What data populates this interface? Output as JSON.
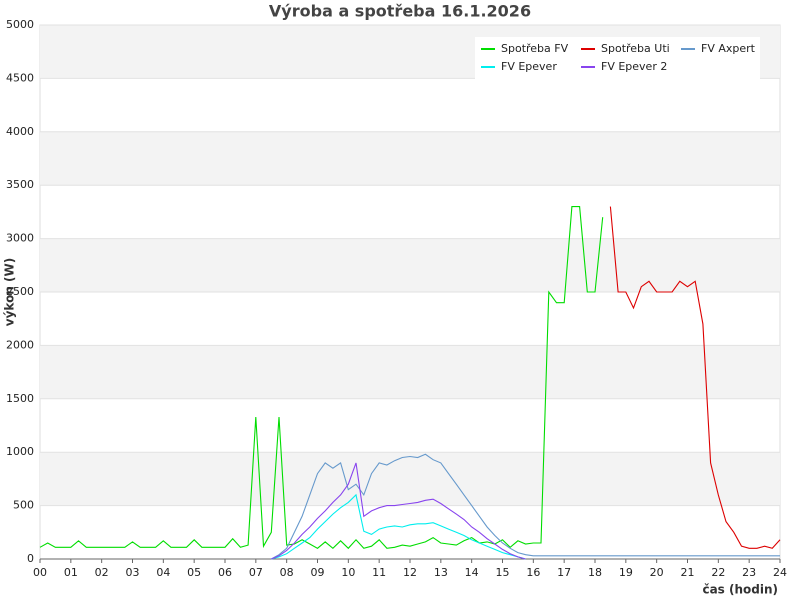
{
  "chart_data": {
    "type": "line",
    "title": "Výroba a spotřeba 16.1.2026",
    "x_label": "čas (hodin)",
    "y_label": "výkon (W)",
    "xlim": [
      0,
      24
    ],
    "ylim": [
      0,
      5000
    ],
    "xticks": [
      {
        "value": 0,
        "label": "00"
      },
      {
        "value": 1,
        "label": "01"
      },
      {
        "value": 2,
        "label": "02"
      },
      {
        "value": 3,
        "label": "03"
      },
      {
        "value": 4,
        "label": "04"
      },
      {
        "value": 5,
        "label": "05"
      },
      {
        "value": 6,
        "label": "06"
      },
      {
        "value": 7,
        "label": "07"
      },
      {
        "value": 8,
        "label": "08"
      },
      {
        "value": 9,
        "label": "09"
      },
      {
        "value": 10,
        "label": "10"
      },
      {
        "value": 11,
        "label": "11"
      },
      {
        "value": 12,
        "label": "12"
      },
      {
        "value": 13,
        "label": "13"
      },
      {
        "value": 14,
        "label": "14"
      },
      {
        "value": 15,
        "label": "15"
      },
      {
        "value": 16,
        "label": "16"
      },
      {
        "value": 17,
        "label": "17"
      },
      {
        "value": 18,
        "label": "18"
      },
      {
        "value": 19,
        "label": "19"
      },
      {
        "value": 20,
        "label": "20"
      },
      {
        "value": 21,
        "label": "21"
      },
      {
        "value": 22,
        "label": "22"
      },
      {
        "value": 23,
        "label": "23"
      },
      {
        "value": 24,
        "label": "24"
      }
    ],
    "yticks": [
      0,
      500,
      1000,
      1500,
      2000,
      2500,
      3000,
      3500,
      4000,
      4500,
      5000
    ],
    "grid": "bands",
    "legend": "upper right",
    "x": [
      0,
      0.25,
      0.5,
      0.75,
      1,
      1.25,
      1.5,
      1.75,
      2,
      2.25,
      2.5,
      2.75,
      3,
      3.25,
      3.5,
      3.75,
      4,
      4.25,
      4.5,
      4.75,
      5,
      5.25,
      5.5,
      5.75,
      6,
      6.25,
      6.5,
      6.75,
      7,
      7.25,
      7.5,
      7.75,
      8,
      8.25,
      8.5,
      8.75,
      9,
      9.25,
      9.5,
      9.75,
      10,
      10.25,
      10.5,
      10.75,
      11,
      11.25,
      11.5,
      11.75,
      12,
      12.25,
      12.5,
      12.75,
      13,
      13.25,
      13.5,
      13.75,
      14,
      14.25,
      14.5,
      14.75,
      15,
      15.25,
      15.5,
      15.75,
      16,
      16.25,
      16.5,
      16.75,
      17,
      17.25,
      17.5,
      17.75,
      18,
      18.25,
      18.5,
      18.75,
      19,
      19.25,
      19.5,
      19.75,
      20,
      20.25,
      20.5,
      20.75,
      21,
      21.25,
      21.5,
      21.75,
      22,
      22.25,
      22.5,
      22.75,
      23,
      23.25,
      23.5,
      23.75,
      24
    ],
    "series": [
      {
        "name": "Spotřeba FV",
        "color": "#00dd00",
        "values": [
          110,
          150,
          110,
          110,
          110,
          170,
          110,
          110,
          110,
          110,
          110,
          110,
          160,
          110,
          110,
          110,
          170,
          110,
          110,
          110,
          180,
          110,
          110,
          110,
          110,
          190,
          110,
          130,
          1330,
          120,
          250,
          1330,
          130,
          140,
          180,
          140,
          100,
          160,
          100,
          170,
          100,
          180,
          100,
          120,
          180,
          100,
          110,
          130,
          120,
          140,
          160,
          200,
          150,
          140,
          130,
          170,
          200,
          150,
          160,
          140,
          180,
          110,
          170,
          140,
          150,
          150,
          2500,
          2400,
          2400,
          3300,
          3300,
          2500,
          2500,
          3200,
          null,
          null,
          null,
          null,
          null,
          null,
          null,
          null,
          null,
          null,
          null,
          null,
          null,
          null,
          null,
          null,
          null,
          null,
          null,
          null,
          null,
          null,
          null
        ]
      },
      {
        "name": "Spotřeba Uti",
        "color": "#dd0000",
        "values": [
          null,
          null,
          null,
          null,
          null,
          null,
          null,
          null,
          null,
          null,
          null,
          null,
          null,
          null,
          null,
          null,
          null,
          null,
          null,
          null,
          null,
          null,
          null,
          null,
          null,
          null,
          null,
          null,
          null,
          null,
          null,
          null,
          null,
          null,
          null,
          null,
          null,
          null,
          null,
          null,
          null,
          null,
          null,
          null,
          null,
          null,
          null,
          null,
          null,
          null,
          null,
          null,
          null,
          null,
          null,
          null,
          null,
          null,
          null,
          null,
          null,
          null,
          null,
          null,
          null,
          null,
          null,
          null,
          null,
          null,
          null,
          null,
          null,
          null,
          3300,
          2500,
          2500,
          2350,
          2550,
          2600,
          2500,
          2500,
          2500,
          2600,
          2550,
          2600,
          2200,
          900,
          600,
          350,
          250,
          120,
          100,
          100,
          120,
          100,
          180
        ]
      },
      {
        "name": "FV Axpert",
        "color": "#6699cc",
        "values": [
          null,
          null,
          null,
          null,
          null,
          null,
          null,
          null,
          null,
          null,
          null,
          null,
          null,
          null,
          null,
          null,
          null,
          null,
          null,
          null,
          null,
          null,
          null,
          null,
          null,
          null,
          null,
          null,
          null,
          null,
          0,
          40,
          100,
          250,
          400,
          600,
          800,
          900,
          850,
          900,
          650,
          700,
          600,
          800,
          900,
          880,
          920,
          950,
          960,
          950,
          980,
          930,
          900,
          800,
          700,
          600,
          500,
          400,
          300,
          220,
          150,
          100,
          60,
          40,
          30,
          30,
          30,
          30,
          30,
          30,
          30,
          30,
          30,
          30,
          30,
          30,
          30,
          30,
          30,
          30,
          30,
          30,
          30,
          30,
          30,
          30,
          30,
          30,
          30,
          30,
          30,
          30,
          30,
          30,
          30,
          30,
          30
        ]
      },
      {
        "name": "FV Epever",
        "color": "#00eeee",
        "values": [
          null,
          null,
          null,
          null,
          null,
          null,
          null,
          null,
          null,
          null,
          null,
          null,
          null,
          null,
          null,
          null,
          null,
          null,
          null,
          null,
          null,
          null,
          null,
          null,
          null,
          null,
          null,
          null,
          null,
          null,
          0,
          20,
          50,
          100,
          150,
          200,
          280,
          350,
          420,
          480,
          530,
          600,
          260,
          230,
          280,
          300,
          310,
          300,
          320,
          330,
          330,
          340,
          310,
          280,
          250,
          220,
          180,
          150,
          120,
          90,
          60,
          40,
          20,
          0,
          null,
          null,
          null,
          null,
          null,
          null,
          null,
          null,
          null,
          null,
          null,
          null,
          null,
          null,
          null,
          null,
          null,
          null,
          null,
          null,
          null,
          null,
          null,
          null,
          null,
          null,
          null,
          null,
          null,
          null,
          null,
          null,
          null
        ]
      },
      {
        "name": "FV Epever 2",
        "color": "#8844ee",
        "values": [
          null,
          null,
          null,
          null,
          null,
          null,
          null,
          null,
          null,
          null,
          null,
          null,
          null,
          null,
          null,
          null,
          null,
          null,
          null,
          null,
          null,
          null,
          null,
          null,
          null,
          null,
          null,
          null,
          null,
          null,
          0,
          30,
          80,
          150,
          230,
          300,
          380,
          450,
          530,
          600,
          700,
          900,
          400,
          450,
          480,
          500,
          500,
          510,
          520,
          530,
          550,
          560,
          520,
          470,
          420,
          370,
          300,
          250,
          190,
          140,
          90,
          50,
          20,
          0,
          null,
          null,
          null,
          null,
          null,
          null,
          null,
          null,
          null,
          null,
          null,
          null,
          null,
          null,
          null,
          null,
          null,
          null,
          null,
          null,
          null,
          null,
          null,
          null,
          null,
          null,
          null,
          null,
          null,
          null,
          null,
          null,
          null
        ]
      }
    ]
  }
}
